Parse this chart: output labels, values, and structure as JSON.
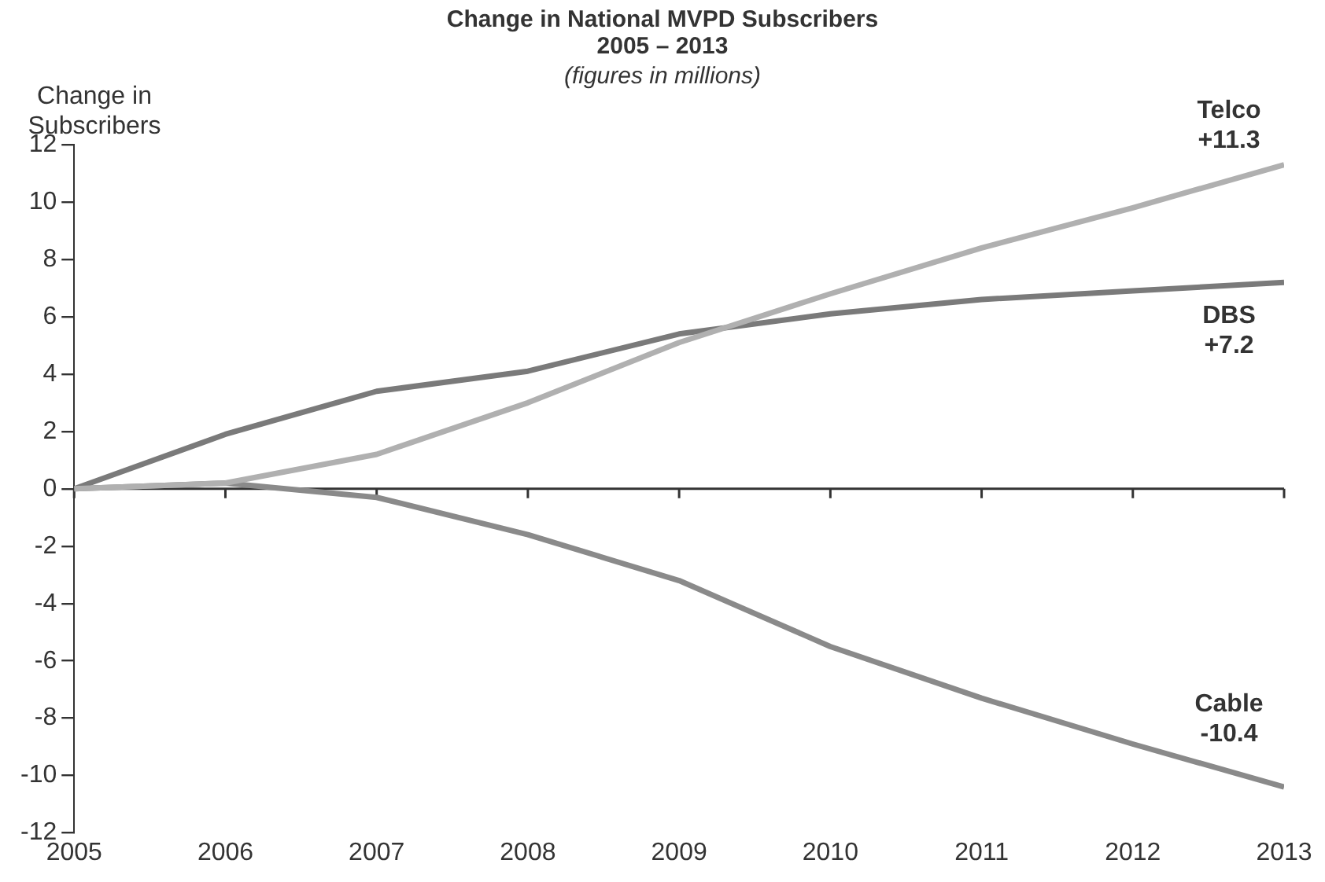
{
  "chart_data": {
    "type": "line",
    "title": "Change in National MVPD Subscribers\n2005 – 2013",
    "subtitle": "(figures in millions)",
    "ylabel": "Change in Subscribers",
    "x": [
      2005,
      2006,
      2007,
      2008,
      2009,
      2010,
      2011,
      2012,
      2013
    ],
    "xlim": [
      2005,
      2013
    ],
    "xticks": [
      2005,
      2006,
      2007,
      2008,
      2009,
      2010,
      2011,
      2012,
      2013
    ],
    "ylim": [
      -12,
      12
    ],
    "yticks": [
      -12,
      -10,
      -8,
      -6,
      -4,
      -2,
      0,
      2,
      4,
      6,
      8,
      10,
      12
    ],
    "grid": false,
    "ref_lines": [
      {
        "axis": "y",
        "value": 0,
        "color": "#333333"
      }
    ],
    "legend": false,
    "marker": "none",
    "line_style": "solid",
    "series": [
      {
        "name": "Telco",
        "color": "#b0b0b0",
        "values": [
          0,
          0.2,
          1.2,
          3.0,
          5.1,
          6.8,
          8.4,
          9.8,
          11.3
        ],
        "value_labels": [
          null,
          null,
          null,
          null,
          null,
          null,
          null,
          null,
          "+11.3"
        ]
      },
      {
        "name": "DBS",
        "color": "#7a7a7a",
        "values": [
          0,
          1.9,
          3.4,
          4.1,
          5.4,
          6.1,
          6.6,
          6.9,
          7.2
        ],
        "value_labels": [
          null,
          null,
          null,
          null,
          null,
          null,
          null,
          null,
          "+7.2"
        ]
      },
      {
        "name": "Cable",
        "color": "#8a8a8a",
        "values": [
          0,
          0.2,
          -0.3,
          -1.6,
          -3.2,
          -5.5,
          -7.3,
          -8.9,
          -10.4
        ],
        "value_labels": [
          null,
          null,
          null,
          null,
          null,
          null,
          null,
          null,
          "-10.4"
        ]
      }
    ]
  }
}
